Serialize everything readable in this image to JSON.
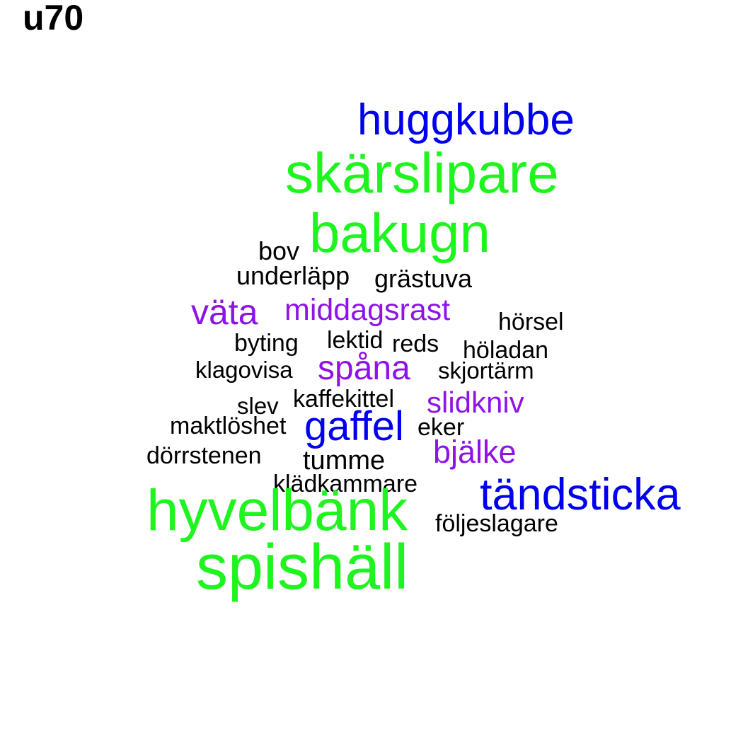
{
  "title": "u70",
  "colors": {
    "green": "#1ef51e",
    "blue": "#0000ee",
    "purple": "#9013e6",
    "black": "#000000"
  },
  "words": [
    {
      "text": "huggkubbe",
      "color": "blue"
    },
    {
      "text": "skärslipare",
      "color": "green"
    },
    {
      "text": "bakugn",
      "color": "green"
    },
    {
      "text": "bov",
      "color": "black"
    },
    {
      "text": "underläpp",
      "color": "black"
    },
    {
      "text": "grästuva",
      "color": "black"
    },
    {
      "text": "väta",
      "color": "purple"
    },
    {
      "text": "middagsrast",
      "color": "purple"
    },
    {
      "text": "hörsel",
      "color": "black"
    },
    {
      "text": "byting",
      "color": "black"
    },
    {
      "text": "lektid",
      "color": "black"
    },
    {
      "text": "reds",
      "color": "black"
    },
    {
      "text": "höladan",
      "color": "black"
    },
    {
      "text": "klagovisa",
      "color": "black"
    },
    {
      "text": "spåna",
      "color": "purple"
    },
    {
      "text": "skjortärm",
      "color": "black"
    },
    {
      "text": "slev",
      "color": "black"
    },
    {
      "text": "kaffekittel",
      "color": "black"
    },
    {
      "text": "slidkniv",
      "color": "purple"
    },
    {
      "text": "maktlöshet",
      "color": "black"
    },
    {
      "text": "gaffel",
      "color": "blue"
    },
    {
      "text": "eker",
      "color": "black"
    },
    {
      "text": "bjälke",
      "color": "purple"
    },
    {
      "text": "dörrstenen",
      "color": "black"
    },
    {
      "text": "tumme",
      "color": "black"
    },
    {
      "text": "klädkammare",
      "color": "black"
    },
    {
      "text": "tändsticka",
      "color": "blue"
    },
    {
      "text": "hyvelbänk",
      "color": "green"
    },
    {
      "text": "följeslagare",
      "color": "black"
    },
    {
      "text": "spishäll",
      "color": "green"
    }
  ]
}
